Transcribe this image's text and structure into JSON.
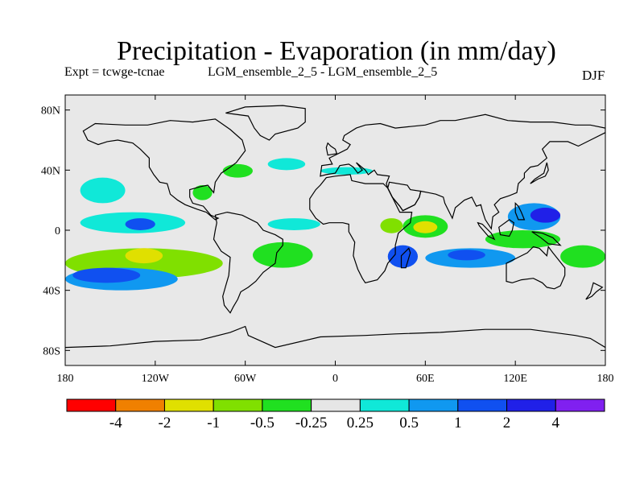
{
  "title": "Precipitation - Evaporation (in mm/day)",
  "experiment_label": "Expt = tcwge-tcnae",
  "subtitle": "LGM_ensemble_2_5 - LGM_ensemble_2_5",
  "season": "DJF",
  "colors": {
    "ocean_background": "#e8e8e8",
    "coastline": "#000000"
  },
  "chart_data": {
    "type": "heatmap",
    "title": "Precipitation - Evaporation (in mm/day)",
    "projection": "cylindrical equidistant",
    "x_range": [
      -180,
      180
    ],
    "y_range": [
      -90,
      90
    ],
    "x_ticks": [
      {
        "value": -180,
        "label": "180"
      },
      {
        "value": -120,
        "label": "120W"
      },
      {
        "value": -60,
        "label": "60W"
      },
      {
        "value": 0,
        "label": "0"
      },
      {
        "value": 60,
        "label": "60E"
      },
      {
        "value": 120,
        "label": "120E"
      },
      {
        "value": 180,
        "label": "180"
      }
    ],
    "y_ticks": [
      {
        "value": 80,
        "label": "80N"
      },
      {
        "value": 40,
        "label": "40N"
      },
      {
        "value": 0,
        "label": "0"
      },
      {
        "value": -40,
        "label": "40S"
      },
      {
        "value": -80,
        "label": "80S"
      }
    ],
    "colorbar": {
      "boundaries": [
        "-4",
        "-2",
        "-1",
        "-0.5",
        "-0.25",
        "0.25",
        "0.5",
        "1",
        "2",
        "4"
      ],
      "colors": [
        "#ff0000",
        "#f08000",
        "#e0e000",
        "#80e000",
        "#20e020",
        "#e6e6e6",
        "#10e8d8",
        "#1098f0",
        "#1050f0",
        "#2020e8",
        "#8020f0"
      ]
    },
    "regions": [
      {
        "name": "N Pacific subtropical",
        "level_index": 6,
        "lon": [
          -170,
          -140
        ],
        "lat": [
          18,
          35
        ]
      },
      {
        "name": "Eastern Pacific ITCZ",
        "level_index": 6,
        "lon": [
          -170,
          -100
        ],
        "lat": [
          -2,
          12
        ]
      },
      {
        "name": "Eastern Pacific ITCZ core",
        "level_index": 8,
        "lon": [
          -140,
          -120
        ],
        "lat": [
          0,
          8
        ]
      },
      {
        "name": "South Pacific band",
        "level_index": 3,
        "lon": [
          -180,
          -75
        ],
        "lat": [
          -32,
          -12
        ]
      },
      {
        "name": "South Pacific anomaly core",
        "level_index": 2,
        "lon": [
          -140,
          -115
        ],
        "lat": [
          -22,
          -12
        ]
      },
      {
        "name": "South Pacific wet region",
        "level_index": 7,
        "lon": [
          -180,
          -105
        ],
        "lat": [
          -40,
          -25
        ]
      },
      {
        "name": "South Pacific wet core",
        "level_index": 8,
        "lon": [
          -175,
          -130
        ],
        "lat": [
          -35,
          -25
        ]
      },
      {
        "name": "Gulf of Mexico",
        "level_index": 4,
        "lon": [
          -95,
          -82
        ],
        "lat": [
          20,
          30
        ]
      },
      {
        "name": "Western North Atlantic",
        "level_index": 4,
        "lon": [
          -75,
          -55
        ],
        "lat": [
          35,
          44
        ]
      },
      {
        "name": "North Atlantic",
        "level_index": 6,
        "lon": [
          -45,
          -20
        ],
        "lat": [
          40,
          48
        ]
      },
      {
        "name": "South Atlantic",
        "level_index": 4,
        "lon": [
          -55,
          -15
        ],
        "lat": [
          -25,
          -8
        ]
      },
      {
        "name": "Tropical Atlantic",
        "level_index": 6,
        "lon": [
          -45,
          -10
        ],
        "lat": [
          0,
          8
        ]
      },
      {
        "name": "Mediterranean",
        "level_index": 6,
        "lon": [
          -10,
          25
        ],
        "lat": [
          37,
          42
        ]
      },
      {
        "name": "East Africa",
        "level_index": 3,
        "lon": [
          30,
          45
        ],
        "lat": [
          -2,
          8
        ]
      },
      {
        "name": "Western Indian Ocean",
        "level_index": 4,
        "lon": [
          45,
          75
        ],
        "lat": [
          -5,
          10
        ]
      },
      {
        "name": "Western Indian Ocean core",
        "level_index": 2,
        "lon": [
          52,
          68
        ],
        "lat": [
          -2,
          6
        ]
      },
      {
        "name": "Mozambique channel",
        "level_index": 8,
        "lon": [
          35,
          55
        ],
        "lat": [
          -25,
          -10
        ]
      },
      {
        "name": "South Indian Ocean",
        "level_index": 7,
        "lon": [
          60,
          120
        ],
        "lat": [
          -25,
          -12
        ]
      },
      {
        "name": "South Indian Ocean core",
        "level_index": 8,
        "lon": [
          75,
          100
        ],
        "lat": [
          -20,
          -13
        ]
      },
      {
        "name": "Western Pacific warm pool",
        "level_index": 7,
        "lon": [
          115,
          150
        ],
        "lat": [
          0,
          18
        ]
      },
      {
        "name": "Western Pacific core",
        "level_index": 9,
        "lon": [
          130,
          150
        ],
        "lat": [
          5,
          15
        ]
      },
      {
        "name": "Maritime continent",
        "level_index": 4,
        "lon": [
          100,
          150
        ],
        "lat": [
          -12,
          0
        ]
      },
      {
        "name": "Southwest Pacific",
        "level_index": 4,
        "lon": [
          150,
          180
        ],
        "lat": [
          -25,
          -10
        ]
      }
    ]
  }
}
